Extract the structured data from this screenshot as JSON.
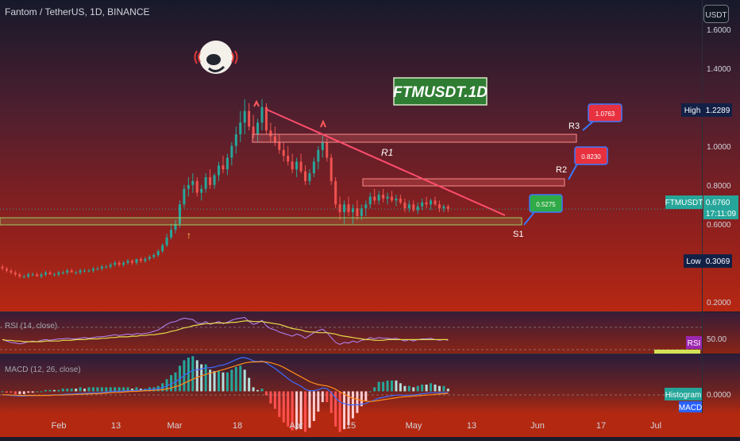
{
  "header": {
    "symbol_info": "Fantom / TetherUS, 1D, BINANCE",
    "currency_button": "USDT"
  },
  "watermark": {
    "text": "FTMUSDT.1D"
  },
  "price_scale": {
    "ticks": [
      "1.6000",
      "1.4000",
      "1.2000",
      "1.0000",
      "0.8000",
      "0.6000",
      "0.4000",
      "0.2000"
    ],
    "tick_values": [
      1.6,
      1.4,
      1.2,
      1.0,
      0.8,
      0.6,
      0.4,
      0.2
    ],
    "high_label": "High",
    "high_value": "1.2289",
    "low_label": "Low",
    "low_value": "0.3069",
    "last_label": "FTMUSDT",
    "last_value": "0.6760",
    "countdown": "17:11:09"
  },
  "time_axis": {
    "labels": [
      "Feb",
      "13",
      "Mar",
      "18",
      "Apr",
      "15",
      "May",
      "13",
      "Jun",
      "17",
      "Jul"
    ]
  },
  "annotations": {
    "r1": "R1",
    "r2": "R2",
    "r3": "R3",
    "s1": "S1",
    "callout_r3": "1.0763",
    "callout_r2": "0.8230",
    "callout_s1": "0.5275",
    "arrow_up": "↑"
  },
  "indicators": {
    "rsi_title": "RSI (14, close)",
    "rsi_tag": "RSI",
    "rsi_level": "50.00",
    "macd_title": "MACD (12, 26, close)",
    "macd_hist_tag": "Histogram",
    "macd_tag": "MACD",
    "macd_level": "0.0000"
  },
  "colors": {
    "bull": "#26a69a",
    "bear": "#ef5350",
    "trendline": "#ff4d6d",
    "zone": "#ff8a8a",
    "support": "#9ccc65",
    "rsi_line": "#b388ff",
    "rsi_ma": "#e6d84a",
    "macd_line": "#3d6bff",
    "signal_line": "#ff8c1a",
    "label_dark": "#132046",
    "callout_red": "#e8313f",
    "callout_green": "#2faa45",
    "callout_border": "#3a78ff"
  },
  "chart_data": {
    "type": "candlestick",
    "price_range": [
      0.15,
      1.75
    ],
    "candles": [
      [
        0.38,
        0.39,
        0.36,
        0.37
      ],
      [
        0.37,
        0.38,
        0.35,
        0.36
      ],
      [
        0.36,
        0.37,
        0.34,
        0.35
      ],
      [
        0.35,
        0.36,
        0.33,
        0.34
      ],
      [
        0.34,
        0.35,
        0.32,
        0.33
      ],
      [
        0.33,
        0.34,
        0.32,
        0.33
      ],
      [
        0.33,
        0.35,
        0.32,
        0.34
      ],
      [
        0.34,
        0.35,
        0.33,
        0.34
      ],
      [
        0.34,
        0.35,
        0.33,
        0.33
      ],
      [
        0.33,
        0.35,
        0.32,
        0.34
      ],
      [
        0.34,
        0.36,
        0.33,
        0.35
      ],
      [
        0.35,
        0.36,
        0.34,
        0.34
      ],
      [
        0.34,
        0.35,
        0.33,
        0.34
      ],
      [
        0.34,
        0.36,
        0.33,
        0.35
      ],
      [
        0.35,
        0.36,
        0.34,
        0.35
      ],
      [
        0.35,
        0.37,
        0.34,
        0.36
      ],
      [
        0.36,
        0.37,
        0.35,
        0.35
      ],
      [
        0.35,
        0.36,
        0.34,
        0.35
      ],
      [
        0.35,
        0.37,
        0.34,
        0.36
      ],
      [
        0.36,
        0.37,
        0.35,
        0.36
      ],
      [
        0.36,
        0.37,
        0.35,
        0.36
      ],
      [
        0.36,
        0.38,
        0.35,
        0.37
      ],
      [
        0.37,
        0.38,
        0.36,
        0.37
      ],
      [
        0.37,
        0.39,
        0.36,
        0.38
      ],
      [
        0.38,
        0.39,
        0.37,
        0.38
      ],
      [
        0.38,
        0.4,
        0.37,
        0.39
      ],
      [
        0.39,
        0.41,
        0.38,
        0.4
      ],
      [
        0.4,
        0.41,
        0.38,
        0.39
      ],
      [
        0.39,
        0.41,
        0.38,
        0.4
      ],
      [
        0.4,
        0.42,
        0.39,
        0.41
      ],
      [
        0.41,
        0.42,
        0.39,
        0.4
      ],
      [
        0.4,
        0.42,
        0.39,
        0.42
      ],
      [
        0.42,
        0.43,
        0.4,
        0.41
      ],
      [
        0.41,
        0.43,
        0.4,
        0.42
      ],
      [
        0.42,
        0.44,
        0.41,
        0.43
      ],
      [
        0.43,
        0.45,
        0.42,
        0.44
      ],
      [
        0.44,
        0.47,
        0.43,
        0.46
      ],
      [
        0.46,
        0.5,
        0.45,
        0.49
      ],
      [
        0.49,
        0.55,
        0.48,
        0.53
      ],
      [
        0.53,
        0.6,
        0.52,
        0.57
      ],
      [
        0.57,
        0.62,
        0.55,
        0.6
      ],
      [
        0.6,
        0.72,
        0.58,
        0.7
      ],
      [
        0.7,
        0.8,
        0.68,
        0.78
      ],
      [
        0.78,
        0.84,
        0.74,
        0.8
      ],
      [
        0.8,
        0.86,
        0.76,
        0.82
      ],
      [
        0.82,
        0.84,
        0.74,
        0.76
      ],
      [
        0.76,
        0.8,
        0.72,
        0.78
      ],
      [
        0.78,
        0.86,
        0.76,
        0.84
      ],
      [
        0.84,
        0.88,
        0.78,
        0.8
      ],
      [
        0.8,
        0.86,
        0.78,
        0.85
      ],
      [
        0.85,
        0.92,
        0.82,
        0.9
      ],
      [
        0.9,
        0.95,
        0.86,
        0.88
      ],
      [
        0.88,
        0.96,
        0.85,
        0.94
      ],
      [
        0.94,
        1.02,
        0.9,
        1.0
      ],
      [
        1.0,
        1.1,
        0.96,
        1.06
      ],
      [
        1.06,
        1.18,
        1.02,
        1.12
      ],
      [
        1.12,
        1.24,
        1.06,
        1.18
      ],
      [
        1.18,
        1.22,
        1.08,
        1.1
      ],
      [
        1.1,
        1.16,
        1.04,
        1.06
      ],
      [
        1.06,
        1.14,
        1.02,
        1.12
      ],
      [
        1.12,
        1.24,
        1.08,
        1.2
      ],
      [
        1.2,
        1.22,
        1.06,
        1.08
      ],
      [
        1.08,
        1.12,
        1.02,
        1.05
      ],
      [
        1.05,
        1.1,
        1.0,
        1.02
      ],
      [
        1.02,
        1.06,
        0.96,
        0.98
      ],
      [
        0.98,
        1.02,
        0.92,
        0.95
      ],
      [
        0.95,
        1.0,
        0.9,
        0.92
      ],
      [
        0.92,
        0.96,
        0.86,
        0.88
      ],
      [
        0.88,
        0.94,
        0.84,
        0.92
      ],
      [
        0.92,
        0.96,
        0.86,
        0.87
      ],
      [
        0.87,
        0.9,
        0.8,
        0.82
      ],
      [
        0.82,
        0.88,
        0.8,
        0.86
      ],
      [
        0.86,
        0.94,
        0.84,
        0.92
      ],
      [
        0.92,
        1.0,
        0.88,
        0.98
      ],
      [
        0.98,
        1.06,
        0.94,
        1.02
      ],
      [
        1.02,
        1.04,
        0.92,
        0.94
      ],
      [
        0.94,
        0.96,
        0.8,
        0.82
      ],
      [
        0.82,
        0.84,
        0.68,
        0.7
      ],
      [
        0.7,
        0.74,
        0.62,
        0.66
      ],
      [
        0.66,
        0.72,
        0.6,
        0.7
      ],
      [
        0.7,
        0.74,
        0.64,
        0.66
      ],
      [
        0.66,
        0.7,
        0.6,
        0.68
      ],
      [
        0.68,
        0.72,
        0.62,
        0.64
      ],
      [
        0.64,
        0.7,
        0.62,
        0.68
      ],
      [
        0.68,
        0.72,
        0.64,
        0.7
      ],
      [
        0.7,
        0.76,
        0.68,
        0.74
      ],
      [
        0.74,
        0.78,
        0.7,
        0.72
      ],
      [
        0.72,
        0.77,
        0.7,
        0.75
      ],
      [
        0.75,
        0.78,
        0.71,
        0.73
      ],
      [
        0.73,
        0.76,
        0.7,
        0.74
      ],
      [
        0.74,
        0.77,
        0.71,
        0.72
      ],
      [
        0.72,
        0.75,
        0.69,
        0.73
      ],
      [
        0.73,
        0.75,
        0.7,
        0.71
      ],
      [
        0.71,
        0.73,
        0.66,
        0.68
      ],
      [
        0.68,
        0.72,
        0.66,
        0.7
      ],
      [
        0.7,
        0.72,
        0.66,
        0.67
      ],
      [
        0.67,
        0.71,
        0.65,
        0.69
      ],
      [
        0.69,
        0.73,
        0.67,
        0.71
      ],
      [
        0.71,
        0.74,
        0.68,
        0.7
      ],
      [
        0.7,
        0.73,
        0.67,
        0.72
      ],
      [
        0.72,
        0.74,
        0.69,
        0.7
      ],
      [
        0.7,
        0.72,
        0.66,
        0.68
      ],
      [
        0.68,
        0.7,
        0.66,
        0.69
      ],
      [
        0.69,
        0.7,
        0.66,
        0.676
      ]
    ],
    "rsi_range": [
      25,
      80
    ],
    "rsi": [
      44,
      42,
      40,
      39,
      38,
      39,
      41,
      42,
      41,
      43,
      44,
      43,
      44,
      45,
      45,
      46,
      45,
      45,
      46,
      47,
      46,
      47,
      48,
      48,
      49,
      50,
      51,
      50,
      51,
      52,
      51,
      53,
      52,
      53,
      54,
      56,
      58,
      62,
      66,
      69,
      70,
      73,
      75,
      74,
      73,
      68,
      67,
      70,
      66,
      68,
      70,
      67,
      69,
      72,
      74,
      75,
      76,
      70,
      66,
      68,
      72,
      64,
      60,
      58,
      55,
      53,
      51,
      49,
      52,
      50,
      46,
      50,
      54,
      57,
      59,
      54,
      47,
      40,
      37,
      40,
      39,
      42,
      40,
      43,
      44,
      47,
      45,
      47,
      46,
      46,
      45,
      46,
      44,
      42,
      44,
      42,
      44,
      45,
      45,
      46,
      44,
      43,
      44,
      43
    ],
    "rsi_ma": [
      44,
      43,
      43,
      42,
      42,
      41,
      41,
      41,
      41,
      41,
      42,
      42,
      42,
      42,
      43,
      43,
      43,
      44,
      44,
      44,
      45,
      45,
      45,
      46,
      46,
      47,
      47,
      48,
      48,
      48,
      49,
      49,
      50,
      50,
      51,
      51,
      52,
      53,
      54,
      56,
      57,
      59,
      61,
      62,
      64,
      65,
      66,
      67,
      67,
      68,
      68,
      68,
      68,
      69,
      69,
      70,
      71,
      71,
      70,
      70,
      70,
      69,
      68,
      67,
      66,
      64,
      62,
      60,
      59,
      58,
      56,
      55,
      55,
      54,
      54,
      54,
      53,
      52,
      50,
      49,
      48,
      47,
      46,
      45,
      44,
      44,
      43,
      43,
      43,
      44,
      44,
      44,
      44,
      44,
      44,
      44,
      44,
      44,
      44,
      44,
      44,
      44,
      44,
      44
    ],
    "macd_range": [
      -0.06,
      0.1
    ],
    "macd": [
      -0.01,
      -0.011,
      -0.012,
      -0.013,
      -0.014,
      -0.014,
      -0.013,
      -0.013,
      -0.012,
      -0.012,
      -0.011,
      -0.011,
      -0.01,
      -0.01,
      -0.009,
      -0.008,
      -0.008,
      -0.007,
      -0.006,
      -0.006,
      -0.005,
      -0.004,
      -0.004,
      -0.003,
      -0.002,
      -0.001,
      0.0,
      0.0,
      0.001,
      0.002,
      0.002,
      0.003,
      0.003,
      0.004,
      0.005,
      0.006,
      0.008,
      0.011,
      0.016,
      0.022,
      0.028,
      0.037,
      0.047,
      0.055,
      0.062,
      0.064,
      0.066,
      0.07,
      0.07,
      0.072,
      0.076,
      0.078,
      0.082,
      0.088,
      0.094,
      0.099,
      0.1,
      0.096,
      0.09,
      0.088,
      0.09,
      0.084,
      0.076,
      0.068,
      0.058,
      0.048,
      0.038,
      0.028,
      0.022,
      0.015,
      0.006,
      0.002,
      0.002,
      0.005,
      0.01,
      0.008,
      -0.004,
      -0.02,
      -0.032,
      -0.036,
      -0.04,
      -0.04,
      -0.04,
      -0.038,
      -0.036,
      -0.03,
      -0.026,
      -0.02,
      -0.018,
      -0.015,
      -0.013,
      -0.011,
      -0.011,
      -0.012,
      -0.011,
      -0.011,
      -0.009,
      -0.007,
      -0.006,
      -0.004,
      -0.004,
      -0.004,
      -0.003,
      -0.004
    ],
    "signal": [
      -0.01,
      -0.01,
      -0.011,
      -0.011,
      -0.012,
      -0.012,
      -0.012,
      -0.012,
      -0.012,
      -0.012,
      -0.012,
      -0.012,
      -0.011,
      -0.011,
      -0.011,
      -0.01,
      -0.01,
      -0.009,
      -0.009,
      -0.008,
      -0.008,
      -0.007,
      -0.007,
      -0.006,
      -0.005,
      -0.004,
      -0.003,
      -0.003,
      -0.002,
      -0.001,
      0.0,
      0.0,
      0.001,
      0.002,
      0.002,
      0.003,
      0.004,
      0.005,
      0.007,
      0.01,
      0.014,
      0.018,
      0.024,
      0.03,
      0.036,
      0.041,
      0.046,
      0.05,
      0.054,
      0.057,
      0.061,
      0.064,
      0.068,
      0.072,
      0.076,
      0.08,
      0.084,
      0.086,
      0.087,
      0.087,
      0.088,
      0.087,
      0.085,
      0.081,
      0.077,
      0.071,
      0.064,
      0.057,
      0.05,
      0.043,
      0.036,
      0.029,
      0.024,
      0.02,
      0.018,
      0.016,
      0.012,
      0.006,
      -0.002,
      -0.008,
      -0.015,
      -0.02,
      -0.024,
      -0.027,
      -0.029,
      -0.03,
      -0.029,
      -0.027,
      -0.025,
      -0.023,
      -0.021,
      -0.019,
      -0.017,
      -0.016,
      -0.015,
      -0.014,
      -0.013,
      -0.012,
      -0.011,
      -0.01,
      -0.009,
      -0.008,
      -0.007,
      -0.006
    ]
  }
}
